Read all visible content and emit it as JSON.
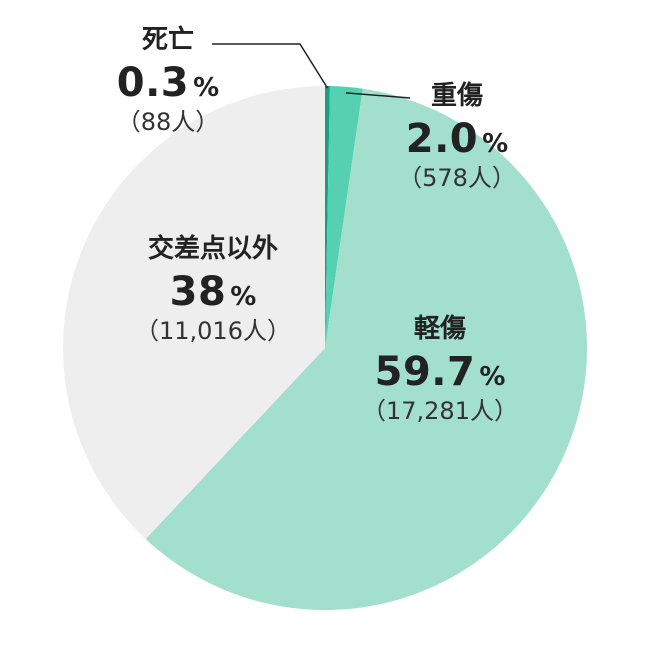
{
  "chart_data": {
    "type": "pie",
    "start_angle_deg": 0,
    "direction": "clockwise",
    "slices": [
      {
        "label": "死亡",
        "percent": 0.3,
        "percent_text": "0.3",
        "pct_sign": "%",
        "count_text": "（88人）",
        "count": 88,
        "color": "#1a9e7c"
      },
      {
        "label": "重傷",
        "percent": 2.0,
        "percent_text": "2.0",
        "pct_sign": "%",
        "count_text": "（578人）",
        "count": 578,
        "color": "#55d1b1"
      },
      {
        "label": "軽傷",
        "percent": 59.7,
        "percent_text": "59.7",
        "pct_sign": "%",
        "count_text": "（17,281人）",
        "count": 17281,
        "color": "#a2dfcd"
      },
      {
        "label": "交差点以外",
        "percent": 38,
        "percent_text": "38",
        "pct_sign": "%",
        "count_text": "（11,016人）",
        "count": 11016,
        "color": "#eeeeee"
      }
    ]
  }
}
